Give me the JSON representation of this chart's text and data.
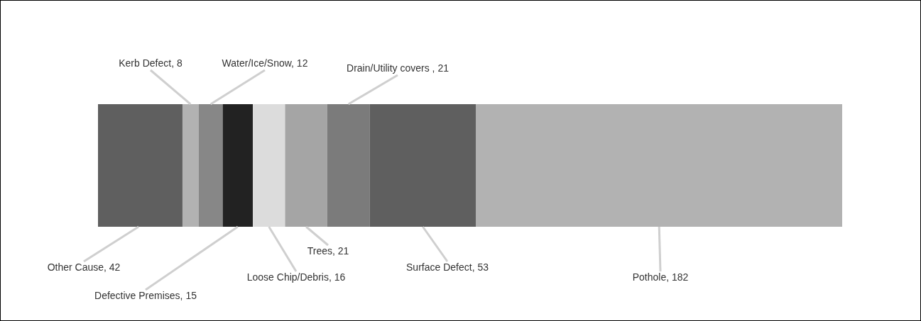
{
  "chart_data": {
    "type": "bar",
    "orientation": "horizontal",
    "stacked": true,
    "categories": [
      null
    ],
    "series": [
      {
        "color": "#5f5f5f",
        "values": [
          42
        ],
        "value_labels": [
          "Other Cause, 42"
        ]
      },
      {
        "color": "#b2b2b2",
        "values": [
          8
        ],
        "value_labels": [
          "Kerb Defect, 8"
        ]
      },
      {
        "color": "#878787",
        "values": [
          12
        ],
        "value_labels": [
          "Water/Ice/Snow, 12"
        ]
      },
      {
        "color": "#222222",
        "values": [
          15
        ],
        "value_labels": [
          "Defective Premises, 15"
        ]
      },
      {
        "color": "#dcdcdc",
        "values": [
          16
        ],
        "value_labels": [
          "Loose Chip/Debris, 16"
        ]
      },
      {
        "color": "#a5a5a5",
        "values": [
          21
        ],
        "value_labels": [
          "Trees, 21"
        ]
      },
      {
        "color": "#7b7b7b",
        "values": [
          21
        ],
        "value_labels": [
          "Drain/Utility covers , 21"
        ]
      },
      {
        "color": "#5f5f5f",
        "values": [
          53
        ],
        "value_labels": [
          "Surface Defect, 53"
        ]
      },
      {
        "color": "#b2b2b2",
        "values": [
          182
        ],
        "value_labels": [
          "Pothole, 182"
        ]
      }
    ]
  }
}
